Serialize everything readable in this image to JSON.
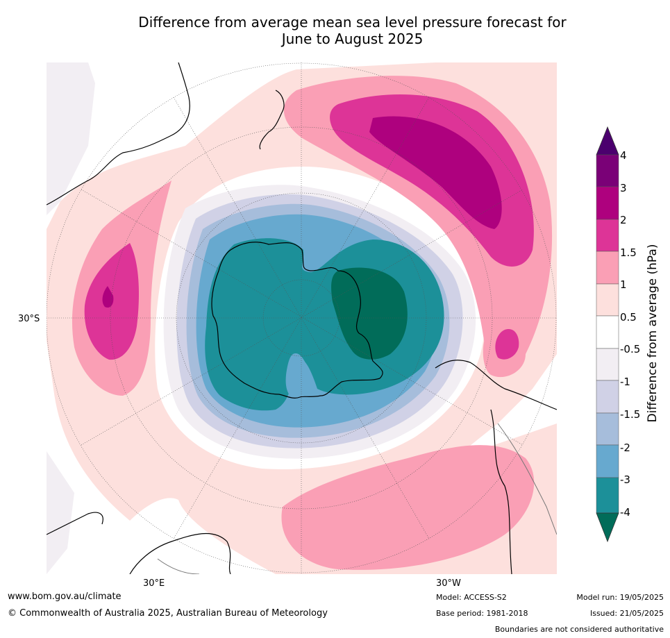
{
  "title_line1": "Difference from average mean sea level pressure forecast for",
  "title_line2": "June to August 2025",
  "colorbar": {
    "title": "Difference from average (hPa)",
    "labels": [
      "4",
      "3",
      "2",
      "1.5",
      "1",
      "0.5",
      "-0.5",
      "-1",
      "-1.5",
      "-2",
      "-3",
      "-4"
    ],
    "colors": {
      "gt4": "#4b006e",
      "3to4": "#7a0177",
      "2to3": "#ae017e",
      "1.5to2": "#dd3497",
      "1to1.5": "#fa9fb5",
      "0.5to1": "#fde0dd",
      "neutral": "#ffffff",
      "-1to-0.5": "#f2eef3",
      "-1.5to-1": "#d0d1e6",
      "-2to-1.5": "#a6bddb",
      "-3to-2": "#67a9cf",
      "-4to-3": "#1c9099",
      "lt-4": "#016c59"
    }
  },
  "map_labels": {
    "lat_30s": "30°S",
    "lon_30e": "30°E",
    "lon_30w": "30°W"
  },
  "footer": {
    "website": "www.bom.gov.au/climate",
    "copyright": "© Commonwealth of Australia 2025, Australian Bureau of Meteorology",
    "model": "Model: ACCESS-S2",
    "base_period": "Base period: 1981-2018",
    "model_run": "Model run: 19/05/2025",
    "issued": "Issued: 21/05/2025",
    "disclaimer": "Boundaries are not considered authoritative"
  }
}
